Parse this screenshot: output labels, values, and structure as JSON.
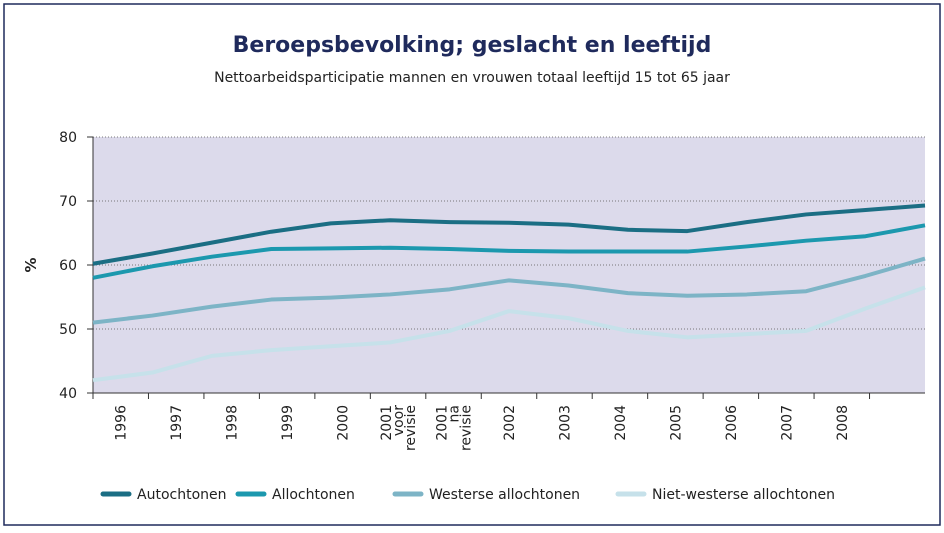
{
  "chart_data": {
    "type": "line",
    "title": "Beroepsbevolking; geslacht en leeftijd",
    "subtitle": "Nettoarbeidsparticipatie mannen en vrouwen totaal leeftijd 15 tot 65 jaar",
    "y_label": "%",
    "categories": [
      "1996",
      "1997",
      "1998",
      "1999",
      "2000",
      "2001 voor revisie",
      "2001 na revisie",
      "2002",
      "2003",
      "2004",
      "2005",
      "2006",
      "2007",
      "2008",
      null
    ],
    "series": [
      {
        "name": "Autochtonen",
        "color": "#1b6e84",
        "values": [
          60.2,
          61.8,
          63.5,
          65.2,
          66.5,
          67.0,
          66.7,
          66.6,
          66.3,
          65.5,
          65.3,
          66.7,
          67.9,
          68.6,
          69.3
        ]
      },
      {
        "name": "Allochtonen",
        "color": "#1c98ae",
        "values": [
          58.0,
          59.8,
          61.3,
          62.5,
          62.6,
          62.7,
          62.5,
          62.2,
          62.1,
          62.1,
          62.1,
          62.9,
          63.8,
          64.5,
          66.2
        ]
      },
      {
        "name": "Westerse allochtonen",
        "color": "#7db4c6",
        "values": [
          51.0,
          52.1,
          53.5,
          54.6,
          54.9,
          55.4,
          56.2,
          57.6,
          56.8,
          55.6,
          55.2,
          55.4,
          55.9,
          58.3,
          61.0
        ]
      },
      {
        "name": "Niet-westerse allochtonen",
        "color": "#c6e1ea",
        "values": [
          42.0,
          43.2,
          45.8,
          46.7,
          47.3,
          47.9,
          49.7,
          52.8,
          51.7,
          49.7,
          48.7,
          49.2,
          49.7,
          53.2,
          56.5
        ]
      }
    ],
    "ylim": [
      40,
      80
    ],
    "yticks": [
      40,
      50,
      60,
      70,
      80
    ],
    "grid": true,
    "legend": "bottom"
  }
}
